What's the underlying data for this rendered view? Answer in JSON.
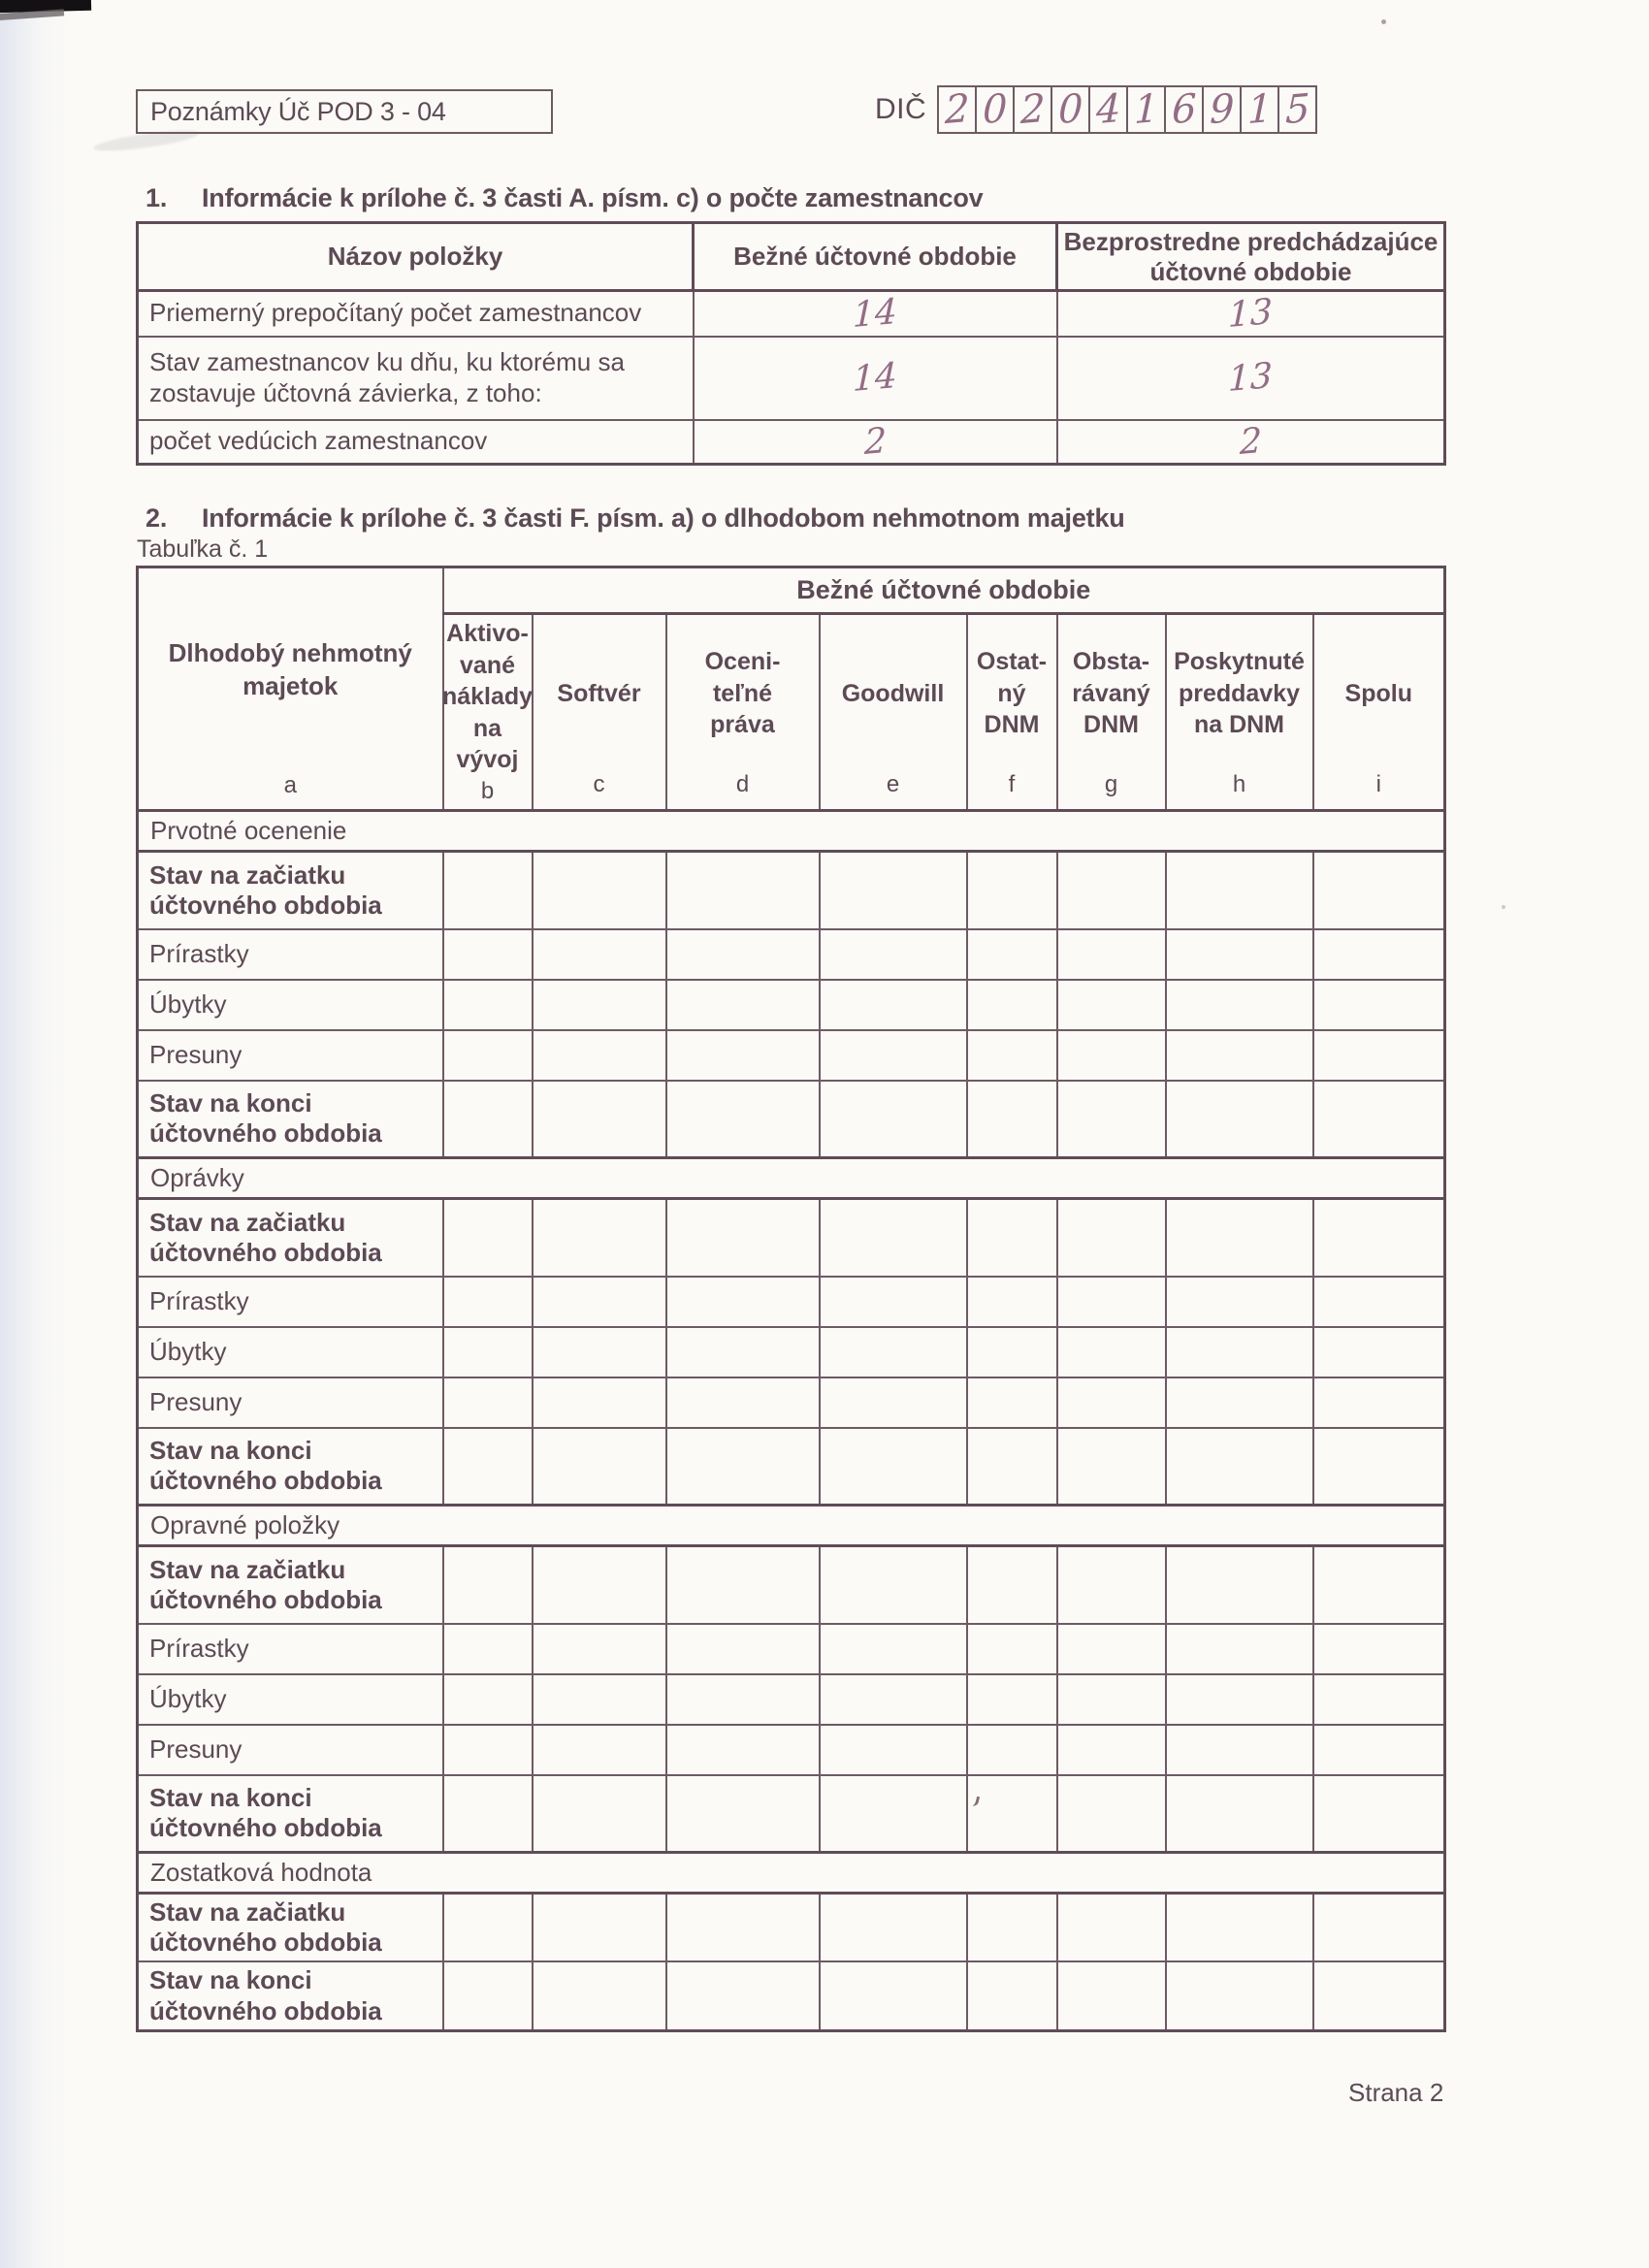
{
  "page": {
    "form_code": "Poznámky Úč POD 3 - 04",
    "dic_label": "DIČ",
    "dic_digits": [
      "2",
      "0",
      "2",
      "0",
      "4",
      "1",
      "6",
      "9",
      "1",
      "5"
    ],
    "footer": "Strana 2"
  },
  "section1": {
    "number": "1.",
    "title": "Informácie k prílohe č. 3 časti A. písm. c) o počte zamestnancov",
    "table": {
      "col_item": "Názov položky",
      "col_current": "Bežné účtovné obdobie",
      "col_previous": "Bezprostredne predchádzajúce účtovné obdobie",
      "rows": [
        {
          "label": "Priemerný prepočítaný počet zamestnancov",
          "current": "14",
          "previous": "13"
        },
        {
          "label": "Stav zamestnancov ku dňu, ku ktorému sa zostavuje účtovná závierka, z toho:",
          "current": "14",
          "previous": "13"
        },
        {
          "label": "počet vedúcich zamestnancov",
          "current": "2",
          "previous": "2"
        }
      ]
    }
  },
  "section2": {
    "number": "2.",
    "title": "Informácie k prílohe č. 3 časti F. písm. a) o dlhodobom nehmotnom majetku",
    "table_caption": "Tabuľka č. 1",
    "table": {
      "period_header": "Bežné účtovné obdobie",
      "corner_header": "Dlhodobý nehmotný majetok",
      "corner_letter": "a",
      "columns": [
        {
          "label": "Aktivo-\nvané\nnáklady\nna vývoj",
          "letter": "b"
        },
        {
          "label": "Softvér",
          "letter": "c"
        },
        {
          "label": "Oceni-\nteľné\npráva",
          "letter": "d"
        },
        {
          "label": "Goodwill",
          "letter": "e"
        },
        {
          "label": "Ostat-\nný\nDNM",
          "letter": "f"
        },
        {
          "label": "Obsta-\nrávaný\nDNM",
          "letter": "g"
        },
        {
          "label": "Poskytnuté\npreddavky\nna DNM",
          "letter": "h"
        },
        {
          "label": "Spolu",
          "letter": "i"
        }
      ],
      "sections": [
        {
          "title": "Prvotné ocenenie",
          "rows": [
            "Stav na začiatku účtovného obdobia",
            "Prírastky",
            "Úbytky",
            "Presuny",
            "Stav na konci účtovného obdobia"
          ]
        },
        {
          "title": "Oprávky",
          "rows": [
            "Stav na začiatku účtovného obdobia",
            "Prírastky",
            "Úbytky",
            "Presuny",
            "Stav na konci účtovného obdobia"
          ]
        },
        {
          "title": "Opravné položky",
          "rows": [
            "Stav na začiatku účtovného obdobia",
            "Prírastky",
            "Úbytky",
            "Presuny",
            "Stav na konci účtovného obdobia"
          ]
        },
        {
          "title": "Zostatková hodnota",
          "rows": [
            "Stav na začiatku účtovného obdobia",
            "Stav na konci účtovného obdobia"
          ]
        }
      ]
    }
  }
}
